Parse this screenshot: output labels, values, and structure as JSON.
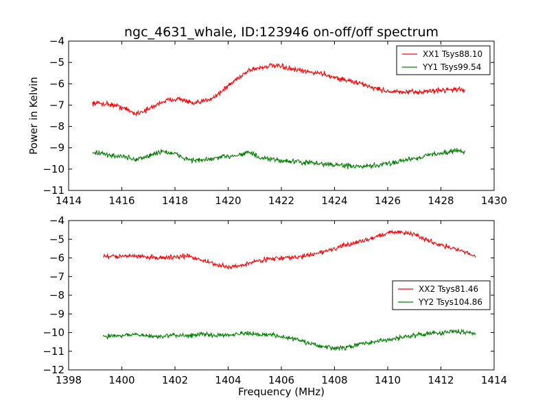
{
  "title": "ngc_4631_whale, ID:123946 on-off/off spectrum",
  "colors": {
    "xx": "#ff0000",
    "yy": "#007f00"
  },
  "chart_data": [
    {
      "type": "line",
      "title": "ngc_4631_whale, ID:123946 on-off/off spectrum",
      "xlabel": "",
      "ylabel": "Power in Kelvin",
      "xlim": [
        1414,
        1430
      ],
      "ylim": [
        -11,
        -4
      ],
      "xticks": [
        "1414",
        "1416",
        "1418",
        "1420",
        "1422",
        "1424",
        "1426",
        "1428",
        "1430"
      ],
      "yticks": [
        "−4",
        "−5",
        "−6",
        "−7",
        "−8",
        "−9",
        "−10",
        "−11"
      ],
      "legend_position": "top-right",
      "series": [
        {
          "name": "XX1 Tsys88.10",
          "color": "#ff0000",
          "x": [
            1414.9,
            1415.5,
            1416.0,
            1416.5,
            1417.0,
            1417.5,
            1418.0,
            1418.3,
            1418.7,
            1419.0,
            1419.5,
            1420.0,
            1420.4,
            1420.8,
            1421.2,
            1421.6,
            1422.0,
            1422.5,
            1423.0,
            1423.5,
            1424.0,
            1424.5,
            1425.0,
            1425.5,
            1426.0,
            1426.5,
            1427.0,
            1427.5,
            1428.0,
            1428.5,
            1428.9
          ],
          "y": [
            -6.9,
            -6.95,
            -7.1,
            -7.4,
            -7.2,
            -6.85,
            -6.7,
            -6.75,
            -6.95,
            -6.85,
            -6.6,
            -6.1,
            -5.7,
            -5.35,
            -5.25,
            -5.15,
            -5.2,
            -5.35,
            -5.45,
            -5.5,
            -5.7,
            -5.85,
            -6.0,
            -6.2,
            -6.35,
            -6.4,
            -6.4,
            -6.35,
            -6.3,
            -6.25,
            -6.3
          ]
        },
        {
          "name": "YY1 Tsys99.54",
          "color": "#007f00",
          "x": [
            1414.9,
            1415.5,
            1416.0,
            1416.5,
            1417.0,
            1417.5,
            1418.0,
            1418.5,
            1419.0,
            1419.5,
            1420.0,
            1420.5,
            1420.8,
            1421.2,
            1421.6,
            1422.0,
            1422.5,
            1423.0,
            1423.5,
            1424.0,
            1424.5,
            1425.0,
            1425.5,
            1426.0,
            1426.5,
            1427.0,
            1427.5,
            1428.0,
            1428.5,
            1428.9
          ],
          "y": [
            -9.2,
            -9.35,
            -9.4,
            -9.55,
            -9.4,
            -9.15,
            -9.3,
            -9.55,
            -9.6,
            -9.5,
            -9.4,
            -9.3,
            -9.2,
            -9.5,
            -9.55,
            -9.6,
            -9.65,
            -9.7,
            -9.75,
            -9.8,
            -9.85,
            -9.9,
            -9.85,
            -9.75,
            -9.6,
            -9.5,
            -9.35,
            -9.25,
            -9.15,
            -9.15
          ]
        }
      ]
    },
    {
      "type": "line",
      "title": "",
      "xlabel": "Frequency (MHz)",
      "ylabel": "",
      "xlim": [
        1398,
        1414
      ],
      "ylim": [
        -12,
        -4
      ],
      "xticks": [
        "1398",
        "1400",
        "1402",
        "1404",
        "1406",
        "1408",
        "1410",
        "1412",
        "1414"
      ],
      "yticks": [
        "−4",
        "−5",
        "−6",
        "−7",
        "−8",
        "−9",
        "−10",
        "−11",
        "−12"
      ],
      "legend_position": "center-right",
      "series": [
        {
          "name": "XX2 Tsys81.46",
          "color": "#ff0000",
          "x": [
            1399.3,
            1400.0,
            1400.5,
            1401.0,
            1401.5,
            1402.0,
            1402.5,
            1403.0,
            1403.5,
            1404.0,
            1404.5,
            1405.0,
            1405.5,
            1406.0,
            1406.3,
            1406.7,
            1407.0,
            1407.5,
            1408.0,
            1408.5,
            1409.0,
            1409.5,
            1410.0,
            1410.5,
            1411.0,
            1411.5,
            1412.0,
            1412.5,
            1413.0,
            1413.3
          ],
          "y": [
            -5.95,
            -5.9,
            -5.9,
            -5.95,
            -6.0,
            -5.95,
            -5.9,
            -6.1,
            -6.35,
            -6.5,
            -6.4,
            -6.2,
            -6.05,
            -6.0,
            -6.0,
            -5.95,
            -5.85,
            -5.7,
            -5.5,
            -5.3,
            -5.1,
            -4.9,
            -4.65,
            -4.6,
            -4.75,
            -5.05,
            -5.3,
            -5.5,
            -5.75,
            -5.9
          ]
        },
        {
          "name": "YY2 Tsys104.86",
          "color": "#007f00",
          "x": [
            1399.3,
            1400.0,
            1400.5,
            1401.0,
            1401.5,
            1402.0,
            1402.5,
            1403.0,
            1403.5,
            1404.0,
            1404.5,
            1405.0,
            1405.5,
            1406.0,
            1406.5,
            1407.0,
            1407.5,
            1408.0,
            1408.5,
            1409.0,
            1409.5,
            1410.0,
            1410.5,
            1411.0,
            1411.5,
            1412.0,
            1412.5,
            1413.0,
            1413.3
          ],
          "y": [
            -10.2,
            -10.15,
            -10.1,
            -10.2,
            -10.2,
            -10.15,
            -10.15,
            -10.1,
            -10.15,
            -10.1,
            -10.05,
            -10.1,
            -10.1,
            -10.2,
            -10.35,
            -10.55,
            -10.75,
            -10.85,
            -10.8,
            -10.6,
            -10.5,
            -10.4,
            -10.25,
            -10.15,
            -10.05,
            -10.0,
            -9.95,
            -9.95,
            -10.05
          ]
        }
      ]
    }
  ]
}
